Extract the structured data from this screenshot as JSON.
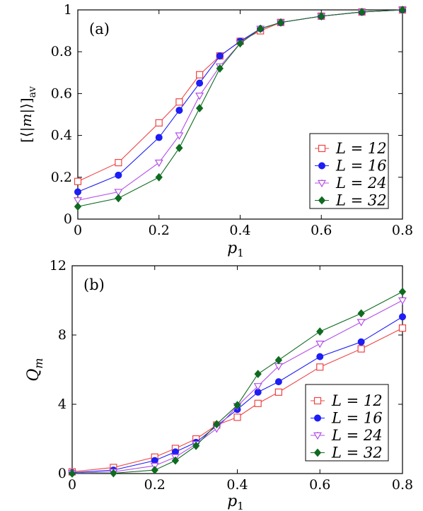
{
  "chart_data": [
    {
      "type": "line",
      "panel_label": "(a)",
      "xlabel": "p1",
      "ylabel": "[⟨|m|⟩]av",
      "xlim": [
        0,
        0.8
      ],
      "ylim": [
        0,
        1
      ],
      "x_ticks": [
        "0",
        "0.2",
        "0.4",
        "0.6",
        "0.8"
      ],
      "y_ticks": [
        "0",
        "0.2",
        "0.4",
        "0.6",
        "0.8",
        "1"
      ],
      "legend_position": "bottom-right",
      "x": [
        0,
        0.1,
        0.2,
        0.25,
        0.3,
        0.35,
        0.4,
        0.45,
        0.5,
        0.6,
        0.7,
        0.8
      ],
      "series": [
        {
          "name": "L = 12",
          "color": "#ef4444",
          "marker": "open-square",
          "values": [
            0.18,
            0.27,
            0.46,
            0.56,
            0.69,
            0.78,
            0.85,
            0.9,
            0.94,
            0.97,
            0.99,
            1.0
          ]
        },
        {
          "name": "L = 16",
          "color": "#1d1df5",
          "marker": "filled-circle",
          "values": [
            0.13,
            0.21,
            0.39,
            0.52,
            0.65,
            0.78,
            0.85,
            0.91,
            0.94,
            0.97,
            0.99,
            1.0
          ]
        },
        {
          "name": "L = 24",
          "color": "#b44ee8",
          "marker": "open-triangle-down",
          "values": [
            0.09,
            0.13,
            0.27,
            0.4,
            0.59,
            0.73,
            0.84,
            0.91,
            0.94,
            0.97,
            0.99,
            1.0
          ]
        },
        {
          "name": "L = 32",
          "color": "#0f6b1f",
          "marker": "filled-diamond",
          "values": [
            0.06,
            0.1,
            0.2,
            0.34,
            0.53,
            0.72,
            0.84,
            0.91,
            0.94,
            0.97,
            0.99,
            1.0
          ]
        }
      ]
    },
    {
      "type": "line",
      "panel_label": "(b)",
      "xlabel": "p1",
      "ylabel": "Qm",
      "xlim": [
        0,
        0.8
      ],
      "ylim": [
        0,
        12
      ],
      "x_ticks": [
        "0",
        "0.2",
        "0.4",
        "0.6",
        "0.8"
      ],
      "y_ticks": [
        "0",
        "4",
        "8",
        "12"
      ],
      "legend_position": "bottom-right",
      "x": [
        0,
        0.1,
        0.2,
        0.25,
        0.3,
        0.35,
        0.4,
        0.45,
        0.5,
        0.6,
        0.7,
        0.8
      ],
      "series": [
        {
          "name": "L = 12",
          "color": "#ef4444",
          "marker": "open-square",
          "values": [
            0.1,
            0.35,
            0.95,
            1.45,
            2.0,
            2.8,
            3.25,
            4.05,
            4.7,
            6.15,
            7.2,
            8.4
          ]
        },
        {
          "name": "L = 16",
          "color": "#1d1df5",
          "marker": "filled-circle",
          "values": [
            0.05,
            0.2,
            0.75,
            1.25,
            1.8,
            2.75,
            3.7,
            4.7,
            5.3,
            6.75,
            7.6,
            9.05
          ]
        },
        {
          "name": "L = 24",
          "color": "#b44ee8",
          "marker": "open-triangle-down",
          "values": [
            0.02,
            0.1,
            0.45,
            0.95,
            1.7,
            2.6,
            3.9,
            5.05,
            6.2,
            7.5,
            8.75,
            10.0
          ]
        },
        {
          "name": "L = 32",
          "color": "#0f6b1f",
          "marker": "filled-diamond",
          "values": [
            0.0,
            0.02,
            0.2,
            0.75,
            1.6,
            2.85,
            3.95,
            5.75,
            6.55,
            8.2,
            9.25,
            10.5
          ]
        }
      ]
    }
  ]
}
